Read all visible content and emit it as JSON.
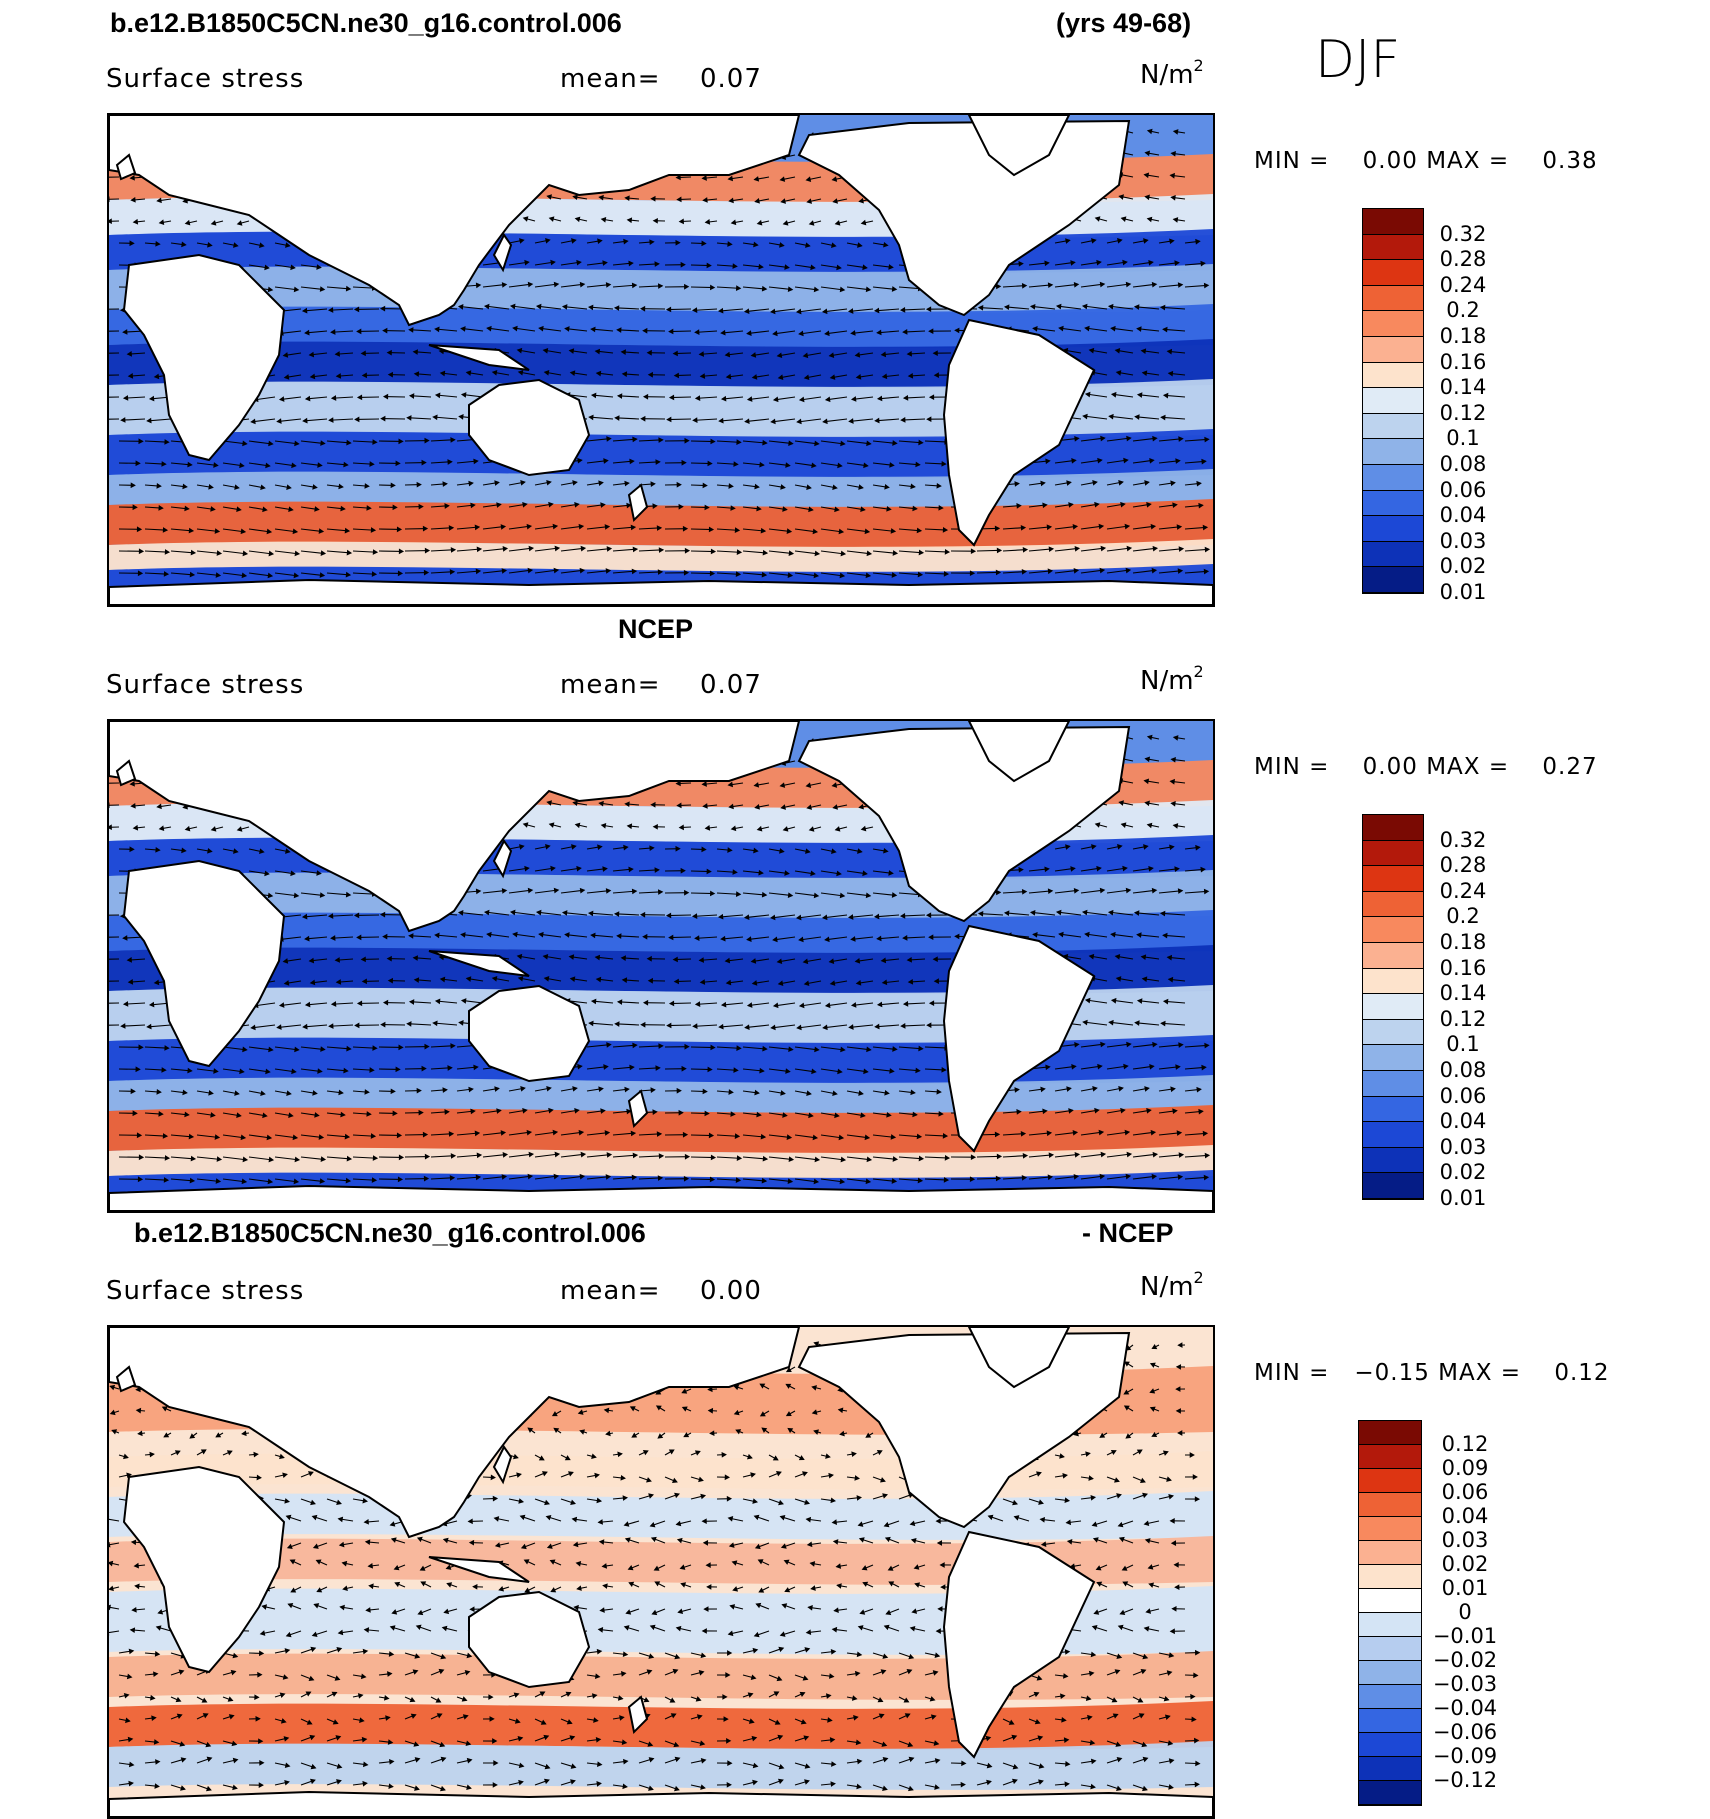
{
  "header": {
    "case": "b.e12.B1850C5CN.ne30_g16.control.006",
    "years": "(yrs 49-68)",
    "season": "DJF"
  },
  "panels": [
    {
      "id": "model",
      "title": "",
      "variable": "Surface stress",
      "mean_label": "mean=",
      "mean": "0.07",
      "units_base": "N/m",
      "units_exp": "2",
      "min_label": "MIN =",
      "min": "0.00",
      "max_label": "MAX =",
      "max": "0.38",
      "colorbar_labels": [
        "0.32",
        "0.28",
        "0.24",
        "0.2",
        "0.18",
        "0.16",
        "0.14",
        "0.12",
        "0.1",
        "0.08",
        "0.06",
        "0.04",
        "0.03",
        "0.02",
        "0.01"
      ],
      "colorbar_colors": [
        "#7a0a03",
        "#b3190b",
        "#dd3512",
        "#ee6235",
        "#f8895e",
        "#fbb191",
        "#fde3cc",
        "#e0ebf6",
        "#bdd3ee",
        "#8fb3e8",
        "#5f8ee6",
        "#3466e2",
        "#1c48d6",
        "#0d32b8",
        "#051c86"
      ]
    },
    {
      "id": "ncep",
      "title": "NCEP",
      "variable": "Surface stress",
      "mean_label": "mean=",
      "mean": "0.07",
      "units_base": "N/m",
      "units_exp": "2",
      "min_label": "MIN =",
      "min": "0.00",
      "max_label": "MAX =",
      "max": "0.27",
      "colorbar_labels": [
        "0.32",
        "0.28",
        "0.24",
        "0.2",
        "0.18",
        "0.16",
        "0.14",
        "0.12",
        "0.1",
        "0.08",
        "0.06",
        "0.04",
        "0.03",
        "0.02",
        "0.01"
      ],
      "colorbar_colors": [
        "#7a0a03",
        "#b3190b",
        "#dd3512",
        "#ee6235",
        "#f8895e",
        "#fbb191",
        "#fde3cc",
        "#e0ebf6",
        "#bdd3ee",
        "#8fb3e8",
        "#5f8ee6",
        "#3466e2",
        "#1c48d6",
        "#0d32b8",
        "#051c86"
      ]
    },
    {
      "id": "diff",
      "title_left": "b.e12.B1850C5CN.ne30_g16.control.006",
      "title_right": "- NCEP",
      "variable": "Surface stress",
      "mean_label": "mean=",
      "mean": "0.00",
      "units_base": "N/m",
      "units_exp": "2",
      "min_label": "MIN =",
      "min": "−0.15",
      "max_label": "MAX =",
      "max": "0.12",
      "colorbar_labels": [
        "0.12",
        "0.09",
        "0.06",
        "0.04",
        "0.03",
        "0.02",
        "0.01",
        "0",
        "−0.01",
        "−0.02",
        "−0.03",
        "−0.04",
        "−0.06",
        "−0.09",
        "−0.12"
      ],
      "colorbar_colors": [
        "#7a0a03",
        "#b3190b",
        "#dd3512",
        "#ee6235",
        "#f8895e",
        "#fbb191",
        "#fde3cc",
        "#ffffff",
        "#d4e4f5",
        "#b6cdef",
        "#8fb3e8",
        "#5f8ee6",
        "#3466e2",
        "#1c48d6",
        "#0d32b8",
        "#051c86"
      ]
    }
  ]
}
